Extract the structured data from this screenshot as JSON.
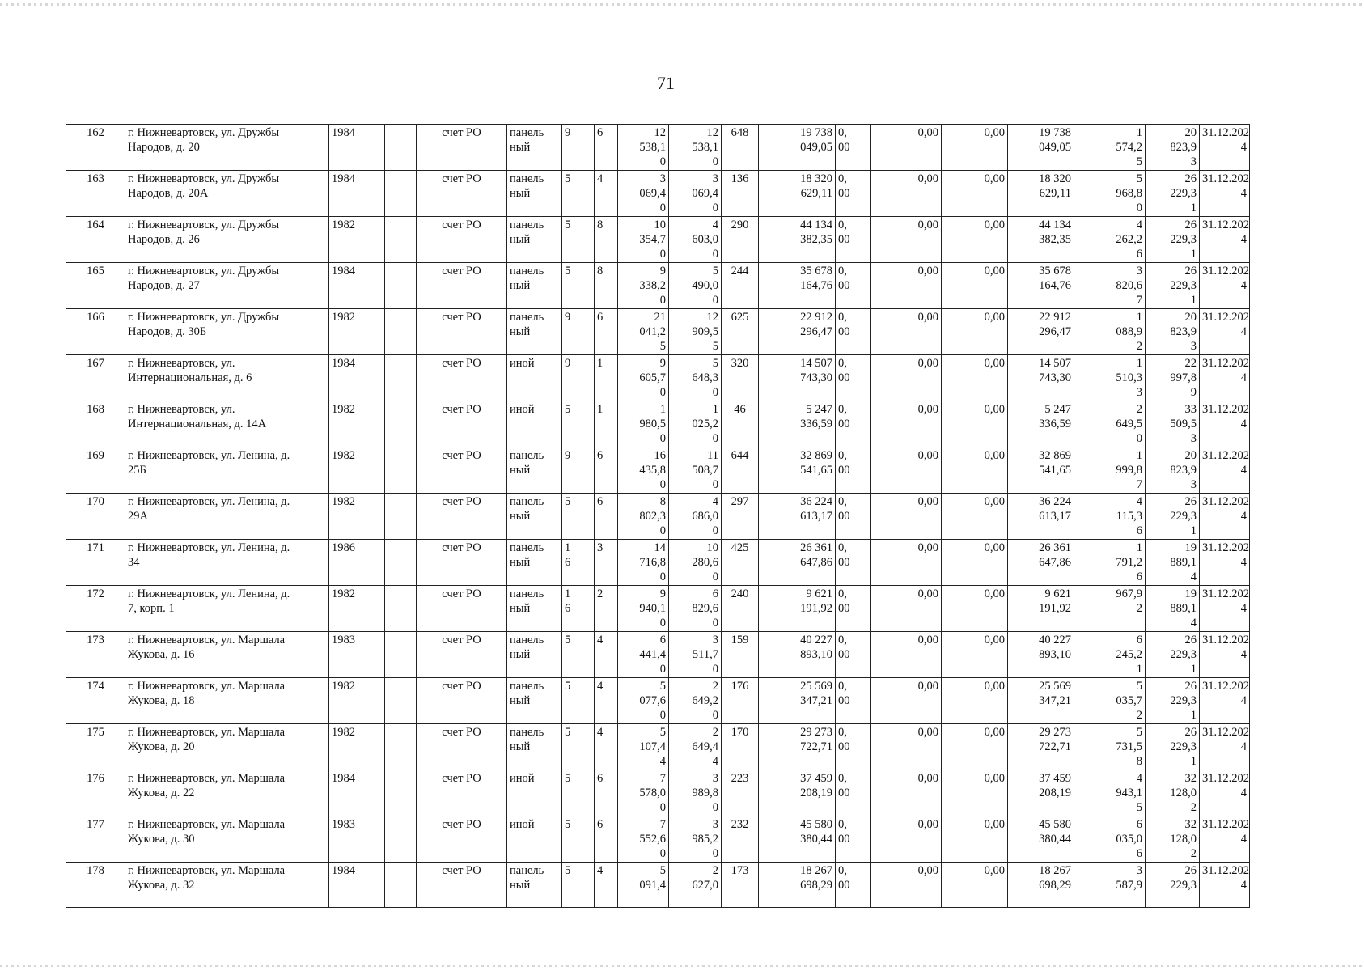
{
  "page_number": "71",
  "rows": [
    [
      "162",
      "г. Нижневартовск, ул. Дружбы\nНародов, д. 20",
      "1984",
      "",
      "счет РО",
      "панель\nный",
      "9",
      "6",
      "12\n538,1\n0",
      "12\n538,1\n0",
      "648",
      "19 738\n049,05",
      "0,\n00",
      "0,00",
      "0,00",
      "19 738\n049,05",
      "1\n574,2\n5",
      "20\n823,9\n3",
      "31.12.202\n4"
    ],
    [
      "163",
      "г. Нижневартовск, ул. Дружбы\nНародов, д. 20А",
      "1984",
      "",
      "счет РО",
      "панель\nный",
      "5",
      "4",
      "3\n069,4\n0",
      "3\n069,4\n0",
      "136",
      "18 320\n629,11",
      "0,\n00",
      "0,00",
      "0,00",
      "18 320\n629,11",
      "5\n968,8\n0",
      "26\n229,3\n1",
      "31.12.202\n4"
    ],
    [
      "164",
      "г. Нижневартовск, ул. Дружбы\nНародов, д. 26",
      "1982",
      "",
      "счет РО",
      "панель\nный",
      "5",
      "8",
      "10\n354,7\n0",
      "4\n603,0\n0",
      "290",
      "44 134\n382,35",
      "0,\n00",
      "0,00",
      "0,00",
      "44 134\n382,35",
      "4\n262,2\n6",
      "26\n229,3\n1",
      "31.12.202\n4"
    ],
    [
      "165",
      "г. Нижневартовск, ул. Дружбы\nНародов, д. 27",
      "1984",
      "",
      "счет РО",
      "панель\nный",
      "5",
      "8",
      "9\n338,2\n0",
      "5\n490,0\n0",
      "244",
      "35 678\n164,76",
      "0,\n00",
      "0,00",
      "0,00",
      "35 678\n164,76",
      "3\n820,6\n7",
      "26\n229,3\n1",
      "31.12.202\n4"
    ],
    [
      "166",
      "г. Нижневартовск, ул. Дружбы\nНародов, д. 30Б",
      "1982",
      "",
      "счет РО",
      "панель\nный",
      "9",
      "6",
      "21\n041,2\n5",
      "12\n909,5\n5",
      "625",
      "22 912\n296,47",
      "0,\n00",
      "0,00",
      "0,00",
      "22 912\n296,47",
      "1\n088,9\n2",
      "20\n823,9\n3",
      "31.12.202\n4"
    ],
    [
      "167",
      "г. Нижневартовск, ул.\nИнтернациональная, д. 6",
      "1984",
      "",
      "счет РО",
      "иной",
      "9",
      "1",
      "9\n605,7\n0",
      "5\n648,3\n0",
      "320",
      "14 507\n743,30",
      "0,\n00",
      "0,00",
      "0,00",
      "14 507\n743,30",
      "1\n510,3\n3",
      "22\n997,8\n9",
      "31.12.202\n4"
    ],
    [
      "168",
      "г. Нижневартовск, ул.\nИнтернациональная, д. 14А",
      "1982",
      "",
      "счет РО",
      "иной",
      "5",
      "1",
      "1\n980,5\n0",
      "1\n025,2\n0",
      "46",
      "5 247\n336,59",
      "0,\n00",
      "0,00",
      "0,00",
      "5 247\n336,59",
      "2\n649,5\n0",
      "33\n509,5\n3",
      "31.12.202\n4"
    ],
    [
      "169",
      "г. Нижневартовск, ул. Ленина, д.\n25Б",
      "1982",
      "",
      "счет РО",
      "панель\nный",
      "9",
      "6",
      "16\n435,8\n0",
      "11\n508,7\n0",
      "644",
      "32 869\n541,65",
      "0,\n00",
      "0,00",
      "0,00",
      "32 869\n541,65",
      "1\n999,8\n7",
      "20\n823,9\n3",
      "31.12.202\n4"
    ],
    [
      "170",
      "г. Нижневартовск, ул. Ленина, д.\n29А",
      "1982",
      "",
      "счет РО",
      "панель\nный",
      "5",
      "6",
      "8\n802,3\n0",
      "4\n686,0\n0",
      "297",
      "36 224\n613,17",
      "0,\n00",
      "0,00",
      "0,00",
      "36 224\n613,17",
      "4\n115,3\n6",
      "26\n229,3\n1",
      "31.12.202\n4"
    ],
    [
      "171",
      "г. Нижневартовск, ул. Ленина, д.\n34",
      "1986",
      "",
      "счет РО",
      "панель\nный",
      "1\n6",
      "3",
      "14\n716,8\n0",
      "10\n280,6\n0",
      "425",
      "26 361\n647,86",
      "0,\n00",
      "0,00",
      "0,00",
      "26 361\n647,86",
      "1\n791,2\n6",
      "19\n889,1\n4",
      "31.12.202\n4"
    ],
    [
      "172",
      "г. Нижневартовск, ул. Ленина, д.\n7, корп. 1",
      "1982",
      "",
      "счет РО",
      "панель\nный",
      "1\n6",
      "2",
      "9\n940,1\n0",
      "6\n829,6\n0",
      "240",
      "9 621\n191,92",
      "0,\n00",
      "0,00",
      "0,00",
      "9 621\n191,92",
      "967,9\n2",
      "19\n889,1\n4",
      "31.12.202\n4"
    ],
    [
      "173",
      "г. Нижневартовск, ул. Маршала\nЖукова, д. 16",
      "1983",
      "",
      "счет РО",
      "панель\nный",
      "5",
      "4",
      "6\n441,4\n0",
      "3\n511,7\n0",
      "159",
      "40 227\n893,10",
      "0,\n00",
      "0,00",
      "0,00",
      "40 227\n893,10",
      "6\n245,2\n1",
      "26\n229,3\n1",
      "31.12.202\n4"
    ],
    [
      "174",
      "г. Нижневартовск, ул. Маршала\nЖукова, д. 18",
      "1982",
      "",
      "счет РО",
      "панель\nный",
      "5",
      "4",
      "5\n077,6\n0",
      "2\n649,2\n0",
      "176",
      "25 569\n347,21",
      "0,\n00",
      "0,00",
      "0,00",
      "25 569\n347,21",
      "5\n035,7\n2",
      "26\n229,3\n1",
      "31.12.202\n4"
    ],
    [
      "175",
      "г. Нижневартовск, ул. Маршала\nЖукова, д. 20",
      "1982",
      "",
      "счет РО",
      "панель\nный",
      "5",
      "4",
      "5\n107,4\n4",
      "2\n649,4\n4",
      "170",
      "29 273\n722,71",
      "0,\n00",
      "0,00",
      "0,00",
      "29 273\n722,71",
      "5\n731,5\n8",
      "26\n229,3\n1",
      "31.12.202\n4"
    ],
    [
      "176",
      "г. Нижневартовск, ул. Маршала\nЖукова, д. 22",
      "1984",
      "",
      "счет РО",
      "иной",
      "5",
      "6",
      "7\n578,0\n0",
      "3\n989,8\n0",
      "223",
      "37 459\n208,19",
      "0,\n00",
      "0,00",
      "0,00",
      "37 459\n208,19",
      "4\n943,1\n5",
      "32\n128,0\n2",
      "31.12.202\n4"
    ],
    [
      "177",
      "г. Нижневартовск, ул. Маршала\nЖукова, д. 30",
      "1983",
      "",
      "счет РО",
      "иной",
      "5",
      "6",
      "7\n552,6\n0",
      "3\n985,2\n0",
      "232",
      "45 580\n380,44",
      "0,\n00",
      "0,00",
      "0,00",
      "45 580\n380,44",
      "6\n035,0\n6",
      "32\n128,0\n2",
      "31.12.202\n4"
    ],
    [
      "178",
      "г. Нижневартовск, ул. Маршала\nЖукова, д. 32",
      "1984",
      "",
      "счет РО",
      "панель\nный",
      "5",
      "4",
      "5\n091,4",
      "2\n627,0",
      "173",
      "18 267\n698,29",
      "0,\n00",
      "0,00",
      "0,00",
      "18 267\n698,29",
      "3\n587,9",
      "26\n229,3",
      "31.12.202\n4"
    ]
  ]
}
